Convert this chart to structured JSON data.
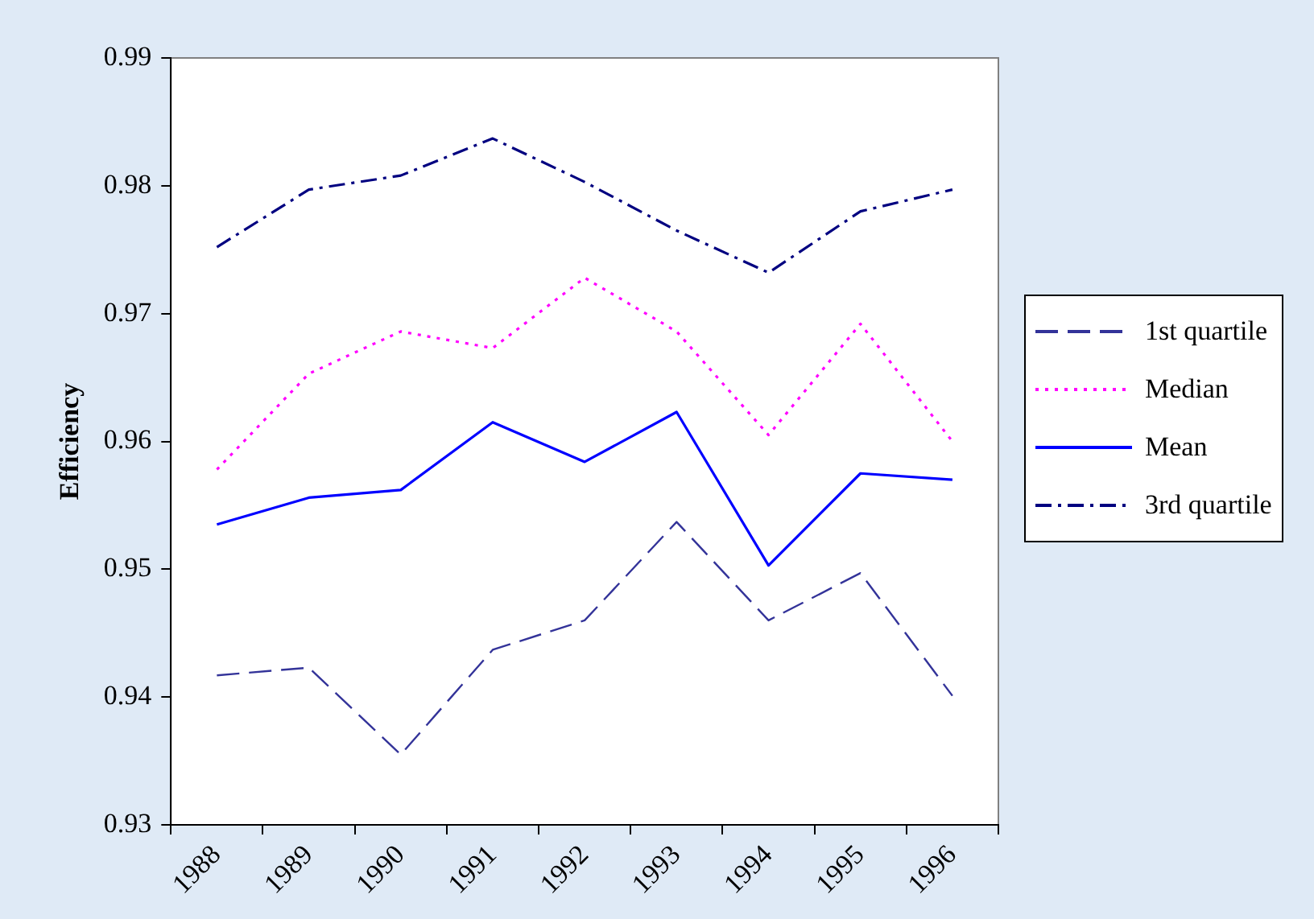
{
  "chart_data": {
    "type": "line",
    "ylabel": "Efficiency",
    "categories": [
      "1988",
      "1989",
      "1990",
      "1991",
      "1992",
      "1993",
      "1994",
      "1995",
      "1996"
    ],
    "series": [
      {
        "name": "1st quartile",
        "color": "#333399",
        "line_style": "dashed",
        "values": [
          0.9417,
          0.9423,
          0.9355,
          0.9437,
          0.946,
          0.9537,
          0.946,
          0.9497,
          0.9401
        ]
      },
      {
        "name": "Median",
        "color": "#ff00ff",
        "line_style": "dotted",
        "values": [
          0.9578,
          0.9653,
          0.9686,
          0.9673,
          0.9728,
          0.9686,
          0.9605,
          0.9692,
          0.96
        ]
      },
      {
        "name": "Mean",
        "color": "#0000ff",
        "line_style": "solid",
        "values": [
          0.9535,
          0.9556,
          0.9562,
          0.9615,
          0.9584,
          0.9623,
          0.9503,
          0.9575,
          0.957
        ]
      },
      {
        "name": "3rd quartile",
        "color": "#000080",
        "line_style": "dashdot",
        "values": [
          0.9752,
          0.9797,
          0.9808,
          0.9837,
          0.9803,
          0.9765,
          0.9732,
          0.978,
          0.9797
        ]
      }
    ],
    "ylim": [
      0.93,
      0.99
    ],
    "yticks": [
      0.93,
      0.94,
      0.95,
      0.96,
      0.97,
      0.98,
      0.99
    ],
    "grid": false,
    "legend": "right",
    "marker": "none"
  }
}
